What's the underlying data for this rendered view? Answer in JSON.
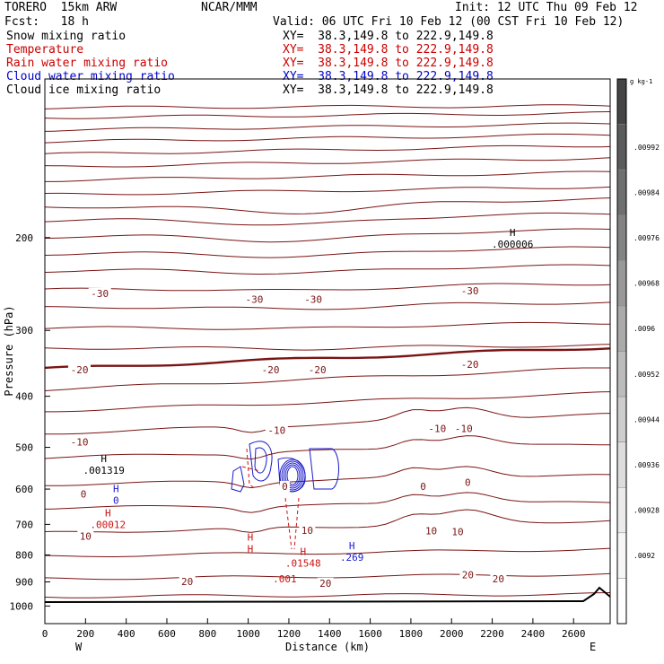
{
  "header": {
    "model": "TORERO  15km ARW",
    "center": "NCAR/MMM",
    "init": "Init: 12 UTC Thu 09 Feb 12",
    "fcst": "Fcst:   18 h",
    "valid": "Valid: 06 UTC Fri 10 Feb 12 (00 CST Fri 10 Feb 12)"
  },
  "legend_rows": [
    {
      "label": "Snow mixing ratio",
      "xy": "XY=  38.3,149.8 to 222.9,149.8",
      "color": "#000000"
    },
    {
      "label": "Temperature",
      "xy": "XY=  38.3,149.8 to 222.9,149.8",
      "color": "#cc0000"
    },
    {
      "label": "Rain water mixing ratio",
      "xy": "XY=  38.3,149.8 to 222.9,149.8",
      "color": "#cc0000"
    },
    {
      "label": "Cloud water mixing ratio",
      "xy": "XY=  38.3,149.8 to 222.9,149.8",
      "color": "#0000cc"
    },
    {
      "label": "Cloud ice mixing ratio",
      "xy": "XY=  38.3,149.8 to 222.9,149.8",
      "color": "#000000"
    }
  ],
  "chart_data": {
    "type": "contour-cross-section",
    "xlabel": "Distance (km)",
    "ylabel": "Pressure (hPa)",
    "xlim": [
      0,
      2780
    ],
    "ylim": [
      1080,
      100
    ],
    "y_scale": "log",
    "x_ticks": [
      0,
      200,
      400,
      600,
      800,
      1000,
      1200,
      1400,
      1600,
      1800,
      2000,
      2200,
      2400,
      2600
    ],
    "y_ticks": [
      200,
      300,
      400,
      500,
      600,
      700,
      800,
      900,
      1000
    ],
    "x_end_labels": {
      "left": "W",
      "right": "E"
    },
    "temperature_contour_labels": [
      {
        "x": 270,
        "p": 255,
        "text": "-30"
      },
      {
        "x": 1030,
        "p": 262,
        "text": "-30"
      },
      {
        "x": 1320,
        "p": 262,
        "text": "-30"
      },
      {
        "x": 2090,
        "p": 252,
        "text": "-30"
      },
      {
        "x": 170,
        "p": 356,
        "text": "-20"
      },
      {
        "x": 1110,
        "p": 356,
        "text": "-20"
      },
      {
        "x": 1340,
        "p": 356,
        "text": "-20"
      },
      {
        "x": 2090,
        "p": 348,
        "text": "-20"
      },
      {
        "x": 170,
        "p": 488,
        "text": "-10"
      },
      {
        "x": 1140,
        "p": 464,
        "text": "-10"
      },
      {
        "x": 1930,
        "p": 460,
        "text": "-10"
      },
      {
        "x": 2060,
        "p": 460,
        "text": "-10"
      },
      {
        "x": 190,
        "p": 613,
        "text": "0"
      },
      {
        "x": 1180,
        "p": 593,
        "text": "0"
      },
      {
        "x": 1860,
        "p": 593,
        "text": "0"
      },
      {
        "x": 2080,
        "p": 583,
        "text": "0"
      },
      {
        "x": 200,
        "p": 737,
        "text": "10"
      },
      {
        "x": 1290,
        "p": 718,
        "text": "10"
      },
      {
        "x": 1900,
        "p": 720,
        "text": "10"
      },
      {
        "x": 2030,
        "p": 722,
        "text": "10"
      },
      {
        "x": 700,
        "p": 898,
        "text": "20"
      },
      {
        "x": 1380,
        "p": 905,
        "text": "20"
      },
      {
        "x": 2080,
        "p": 872,
        "text": "20"
      },
      {
        "x": 2230,
        "p": 888,
        "text": "20"
      }
    ],
    "extrema": [
      {
        "x": 2300,
        "p": 205,
        "mark": "H",
        "text": ".000006",
        "field": "snow"
      },
      {
        "x": 290,
        "p": 550,
        "mark": "H",
        "text": ".001319",
        "field": "cloud_ice"
      },
      {
        "x": 350,
        "p": 627,
        "mark": "H",
        "text": "0",
        "field": "cloud_water"
      },
      {
        "x": 310,
        "p": 697,
        "mark": "H",
        "text": ".00012",
        "field": "rain"
      },
      {
        "x": 1010,
        "p": 775,
        "mark": "H",
        "text": "H",
        "field": "rain"
      },
      {
        "x": 1270,
        "p": 825,
        "mark": "H",
        "text": ".01548",
        "field": "rain"
      },
      {
        "x": 1510,
        "p": 805,
        "mark": "H",
        "text": ".269",
        "field": "cloud_water"
      },
      {
        "x": 1180,
        "p": 885,
        "mark": "",
        "text": ".001",
        "field": "rain"
      }
    ],
    "colorbar": {
      "unit": "g kg-1",
      "levels": [
        ".00992",
        ".00984",
        ".00976",
        ".00968",
        ".0096",
        ".00952",
        ".00944",
        ".00936",
        ".00928",
        ".0092"
      ],
      "colors": [
        "#454545",
        "#5b5b5b",
        "#6f6f6f",
        "#838383",
        "#989898",
        "#aaaaaa",
        "#bcbcbc",
        "#cdcdcd",
        "#dddddd",
        "#ebebeb",
        "#f6f6f6",
        "#ffffff"
      ]
    }
  }
}
